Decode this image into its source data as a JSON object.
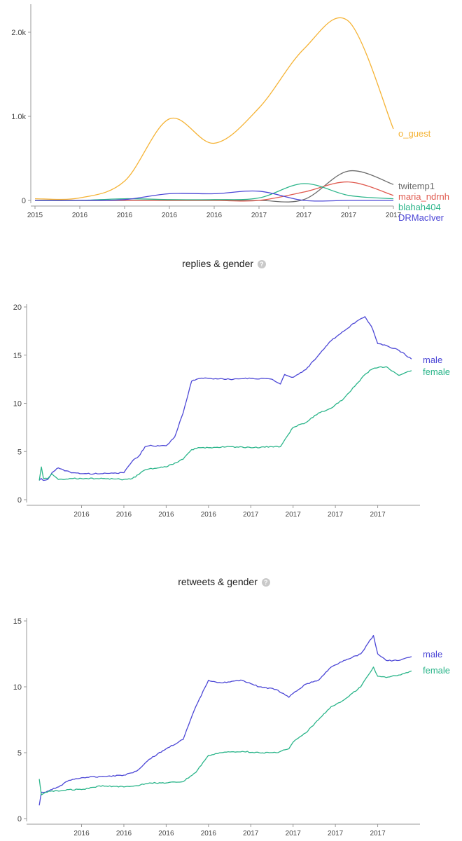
{
  "charts": [
    {
      "id": "top",
      "title": "",
      "chart_data": {
        "type": "line",
        "title": "",
        "x": [
          0,
          1,
          2,
          3,
          4,
          5,
          6,
          7,
          8
        ],
        "x_tick_labels": [
          "2015",
          "2016",
          "2016",
          "2016",
          "2016",
          "2017",
          "2017",
          "2017",
          "2017"
        ],
        "y_tick_values": [
          0,
          1000,
          2000
        ],
        "y_tick_labels": [
          "0",
          "1.0k",
          "2.0k"
        ],
        "ylim": [
          0,
          2300
        ],
        "series": [
          {
            "name": "o_guest",
            "color": "#f5b335",
            "values": [
              20,
              30,
              230,
              970,
              680,
              1100,
              1800,
              2130,
              850
            ]
          },
          {
            "name": "twitemp1",
            "color": "#6a6a6a",
            "values": [
              0,
              0,
              0,
              0,
              0,
              0,
              10,
              350,
              190
            ]
          },
          {
            "name": "maria_ndrnh",
            "color": "#e05a4f",
            "values": [
              0,
              0,
              0,
              0,
              0,
              0,
              100,
              220,
              60
            ]
          },
          {
            "name": "blahah404",
            "color": "#2bb58a",
            "values": [
              0,
              0,
              20,
              10,
              10,
              30,
              200,
              60,
              20
            ]
          },
          {
            "name": "DRMacIver",
            "color": "#4c47d6",
            "values": [
              0,
              0,
              10,
              80,
              80,
              110,
              0,
              0,
              0
            ]
          }
        ]
      }
    },
    {
      "id": "replies",
      "title": "replies & gender",
      "chart_data": {
        "type": "line",
        "title": "replies & gender",
        "x": [
          0,
          0.05,
          0.1,
          0.2,
          0.3,
          0.45,
          0.6,
          0.8,
          1.0,
          1.5,
          2.0,
          2.2,
          2.35,
          2.5,
          2.6,
          3.0,
          3.2,
          3.4,
          3.6,
          3.8,
          4.0,
          4.5,
          5.0,
          5.5,
          5.7,
          5.8,
          6.0,
          6.3,
          6.6,
          6.9,
          7.2,
          7.5,
          7.7,
          7.85,
          8.0,
          8.2,
          8.5,
          8.8
        ],
        "x_tick_positions": [
          1,
          2,
          3,
          4,
          5,
          6,
          7,
          8
        ],
        "x_tick_labels": [
          "2016",
          "2016",
          "2016",
          "2016",
          "2017",
          "2017",
          "2017",
          "2017"
        ],
        "y_tick_values": [
          0,
          5,
          10,
          15,
          20
        ],
        "y_tick_labels": [
          "0",
          "5",
          "10",
          "15",
          "20"
        ],
        "ylim": [
          0,
          20
        ],
        "xlim": [
          -0.2,
          9.0
        ],
        "series": [
          {
            "name": "male",
            "color": "#4c47d6",
            "values": [
              2.0,
              2.2,
              2.0,
              2.1,
              2.8,
              3.3,
              3.0,
              2.8,
              2.7,
              2.7,
              2.8,
              4.0,
              4.5,
              5.5,
              5.6,
              5.6,
              6.5,
              9.0,
              12.3,
              12.6,
              12.6,
              12.5,
              12.6,
              12.5,
              12.0,
              13.0,
              12.7,
              13.5,
              15.0,
              16.5,
              17.5,
              18.5,
              19.0,
              18.0,
              16.2,
              16.0,
              15.5,
              14.6
            ]
          },
          {
            "name": "female",
            "color": "#2bb58a",
            "values": [
              2.0,
              3.4,
              2.2,
              2.2,
              2.7,
              2.1,
              2.1,
              2.2,
              2.2,
              2.2,
              2.1,
              2.2,
              2.6,
              3.1,
              3.2,
              3.4,
              3.8,
              4.2,
              5.2,
              5.4,
              5.4,
              5.5,
              5.4,
              5.5,
              5.5,
              6.2,
              7.5,
              8.0,
              9.0,
              9.5,
              10.5,
              12.0,
              13.0,
              13.5,
              13.7,
              13.8,
              12.9,
              13.4
            ]
          }
        ]
      }
    },
    {
      "id": "retweets",
      "title": "retweets & gender",
      "chart_data": {
        "type": "line",
        "title": "retweets & gender",
        "x": [
          0,
          0.05,
          0.15,
          0.3,
          0.5,
          0.7,
          1.0,
          1.5,
          2.0,
          2.3,
          2.6,
          3.0,
          3.4,
          3.7,
          4.0,
          4.3,
          4.8,
          5.2,
          5.6,
          5.9,
          6.0,
          6.3,
          6.6,
          6.9,
          7.2,
          7.6,
          7.9,
          8.0,
          8.2,
          8.5,
          8.8
        ],
        "x_tick_positions": [
          1,
          2,
          3,
          4,
          5,
          6,
          7,
          8
        ],
        "x_tick_labels": [
          "2016",
          "2016",
          "2016",
          "2016",
          "2017",
          "2017",
          "2017",
          "2017"
        ],
        "y_tick_values": [
          0,
          5,
          10,
          15
        ],
        "y_tick_labels": [
          "0",
          "5",
          "10",
          "15"
        ],
        "ylim": [
          0,
          15
        ],
        "xlim": [
          -0.2,
          9.0
        ],
        "series": [
          {
            "name": "male",
            "color": "#4c47d6",
            "values": [
              1.0,
              2.0,
              2.0,
              2.2,
              2.5,
              2.9,
              3.1,
              3.2,
              3.3,
              3.6,
              4.5,
              5.3,
              6.0,
              8.5,
              10.5,
              10.3,
              10.5,
              10.0,
              9.8,
              9.2,
              9.5,
              10.2,
              10.5,
              11.5,
              12.0,
              12.5,
              13.9,
              12.5,
              12.0,
              12.0,
              12.3
            ]
          },
          {
            "name": "female",
            "color": "#2bb58a",
            "values": [
              3.0,
              1.8,
              2.0,
              2.1,
              2.1,
              2.2,
              2.2,
              2.5,
              2.4,
              2.5,
              2.7,
              2.7,
              2.8,
              3.5,
              4.8,
              5.0,
              5.1,
              5.0,
              5.0,
              5.3,
              5.8,
              6.5,
              7.5,
              8.5,
              9.0,
              10.0,
              11.5,
              10.8,
              10.7,
              10.9,
              11.2
            ]
          }
        ]
      }
    }
  ]
}
